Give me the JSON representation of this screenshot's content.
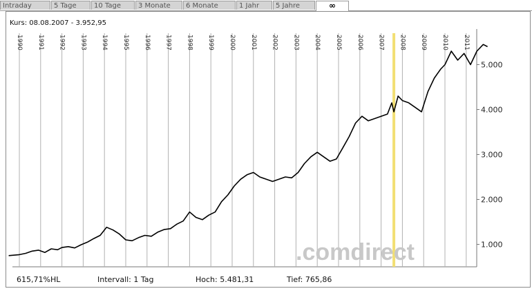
{
  "tabs": [
    {
      "label": "Intraday"
    },
    {
      "label": "5 Tage"
    },
    {
      "label": "10 Tage"
    },
    {
      "label": "3 Monate"
    },
    {
      "label": "6 Monate"
    },
    {
      "label": "1 Jahr"
    },
    {
      "label": "5 Jahre"
    },
    {
      "label": "∞",
      "active": true
    }
  ],
  "header": {
    "kurs": "Kurs: 08.08.2007 - 3.952,95"
  },
  "footer": {
    "hl": "615,71%HL",
    "intervall": "Intervall: 1 Tag",
    "hoch": "Hoch: 5.481,31",
    "tief": "Tief: 765,86"
  },
  "watermark": ".comdirect",
  "colors": {
    "line": "#000000",
    "highlight": "#f2df74",
    "grid": "#b0b0b0",
    "watermark": "#c8c8c8"
  },
  "chart_data": {
    "type": "line",
    "x_ticks": [
      "1990",
      "1991",
      "1992",
      "1993",
      "1994",
      "1995",
      "1996",
      "1997",
      "1998",
      "1999",
      "2000",
      "2001",
      "2002",
      "2003",
      "2004",
      "2005",
      "2006",
      "2007",
      "2008",
      "2009",
      "2010",
      "2011"
    ],
    "y_ticks": [
      "1.000",
      "2.000",
      "3.000",
      "4.000",
      "5.000"
    ],
    "ylim": [
      500,
      5700
    ],
    "xlim": [
      1990.0,
      2012.0
    ],
    "highlight_date": 2007.6,
    "series": [
      {
        "x": [
          1989.5,
          1990.0,
          1990.3,
          1990.6,
          1990.9,
          1991.2,
          1991.5,
          1991.8,
          1992.0,
          1992.3,
          1992.6,
          1992.9,
          1993.2,
          1993.5,
          1993.8,
          1994.1,
          1994.4,
          1994.7,
          1995.0,
          1995.3,
          1995.6,
          1995.9,
          1996.2,
          1996.5,
          1996.8,
          1997.1,
          1997.4,
          1997.7,
          1998.0,
          1998.3,
          1998.6,
          1998.9,
          1999.2,
          1999.5,
          1999.8,
          2000.1,
          2000.4,
          2000.7,
          2001.0,
          2001.3,
          2001.6,
          2001.9,
          2002.2,
          2002.5,
          2002.8,
          2003.1,
          2003.4,
          2003.7,
          2004.0,
          2004.3,
          2004.6,
          2004.9,
          2005.2,
          2005.5,
          2005.8,
          2006.1,
          2006.4,
          2006.7,
          2007.0,
          2007.3,
          2007.5,
          2007.6,
          2007.8,
          2008.0,
          2008.3,
          2008.6,
          2008.9,
          2009.2,
          2009.5,
          2009.8,
          2010.0,
          2010.3,
          2010.6,
          2010.9,
          2011.2,
          2011.5,
          2011.8,
          2012.0
        ],
        "y": [
          750,
          770,
          800,
          850,
          870,
          820,
          900,
          880,
          930,
          950,
          920,
          990,
          1050,
          1130,
          1200,
          1380,
          1320,
          1230,
          1100,
          1080,
          1150,
          1200,
          1180,
          1270,
          1330,
          1350,
          1450,
          1520,
          1720,
          1600,
          1550,
          1650,
          1720,
          1950,
          2100,
          2300,
          2450,
          2550,
          2600,
          2500,
          2450,
          2400,
          2450,
          2500,
          2480,
          2600,
          2800,
          2950,
          3050,
          2950,
          2850,
          2900,
          3150,
          3400,
          3700,
          3850,
          3750,
          3800,
          3850,
          3900,
          4150,
          3950,
          4300,
          4200,
          4150,
          4050,
          3950,
          4400,
          4700,
          4900,
          5000,
          5300,
          5100,
          5250,
          5000,
          5300,
          5450,
          5400
        ]
      }
    ]
  }
}
